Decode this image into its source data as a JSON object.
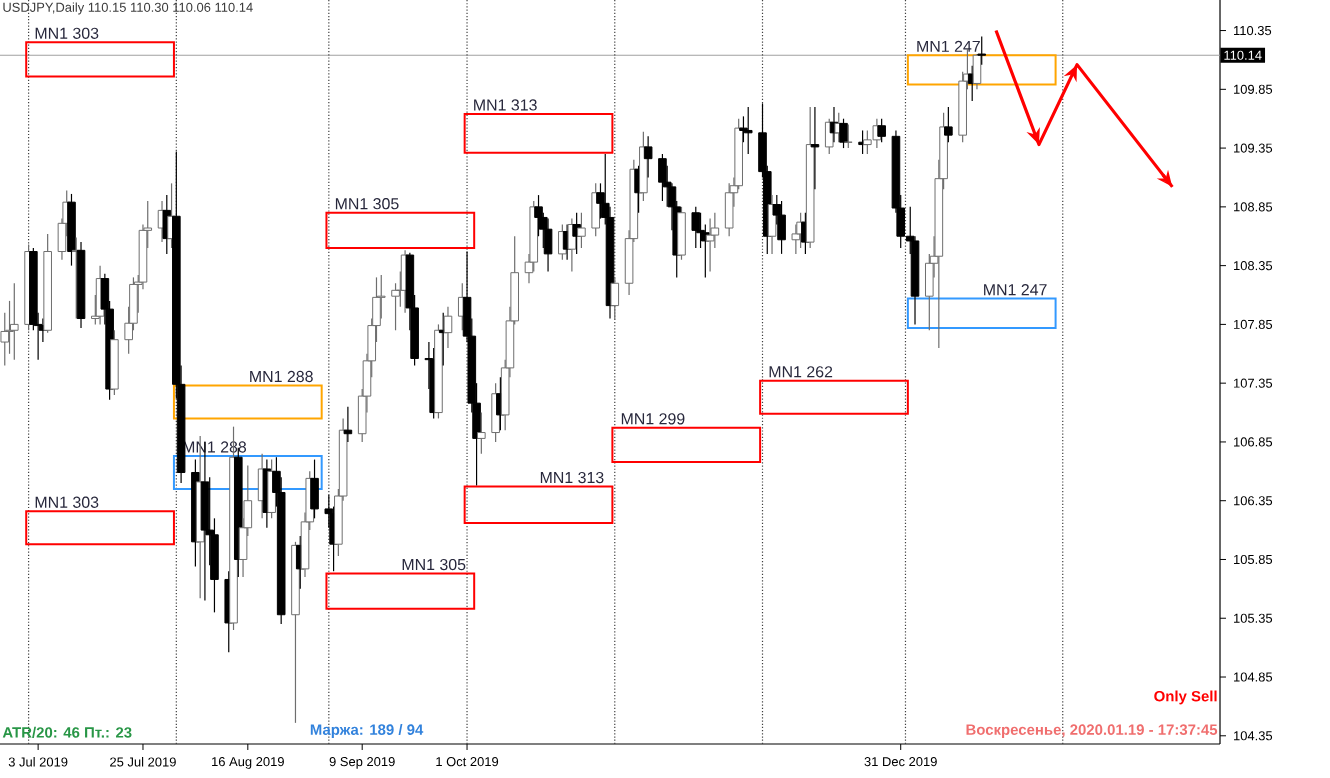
{
  "chart_data": {
    "type": "candlestick",
    "title": "USDJPY,Daily  110.15 110.30 110.06 110.14",
    "x": [
      "2019-06-26",
      "2019-06-27",
      "2019-06-28",
      "2019-07-01",
      "2019-07-02",
      "2019-07-03",
      "2019-07-04",
      "2019-07-05",
      "2019-07-08",
      "2019-07-09",
      "2019-07-10",
      "2019-07-11",
      "2019-07-12",
      "2019-07-15",
      "2019-07-16",
      "2019-07-17",
      "2019-07-18",
      "2019-07-19",
      "2019-07-22",
      "2019-07-23",
      "2019-07-24",
      "2019-07-25",
      "2019-07-26",
      "2019-07-29",
      "2019-07-30",
      "2019-07-31",
      "2019-08-01",
      "2019-08-02",
      "2019-08-05",
      "2019-08-06",
      "2019-08-07",
      "2019-08-08",
      "2019-08-09",
      "2019-08-12",
      "2019-08-13",
      "2019-08-14",
      "2019-08-15",
      "2019-08-16",
      "2019-08-19",
      "2019-08-20",
      "2019-08-21",
      "2019-08-22",
      "2019-08-23",
      "2019-08-26",
      "2019-08-27",
      "2019-08-28",
      "2019-08-29",
      "2019-08-30",
      "2019-09-02",
      "2019-09-03",
      "2019-09-04",
      "2019-09-05",
      "2019-09-06",
      "2019-09-09",
      "2019-09-10",
      "2019-09-11",
      "2019-09-12",
      "2019-09-13",
      "2019-09-16",
      "2019-09-17",
      "2019-09-18",
      "2019-09-19",
      "2019-09-20",
      "2019-09-23",
      "2019-09-24",
      "2019-09-25",
      "2019-09-26",
      "2019-09-27",
      "2019-09-30",
      "2019-10-01",
      "2019-10-02",
      "2019-10-03",
      "2019-10-04",
      "2019-10-07",
      "2019-10-08",
      "2019-10-09",
      "2019-10-10",
      "2019-10-11",
      "2019-10-14",
      "2019-10-15",
      "2019-10-16",
      "2019-10-17",
      "2019-10-18",
      "2019-10-21",
      "2019-10-22",
      "2019-10-23",
      "2019-10-24",
      "2019-10-25",
      "2019-10-28",
      "2019-10-29",
      "2019-10-30",
      "2019-10-31",
      "2019-11-01",
      "2019-11-04",
      "2019-11-05",
      "2019-11-06",
      "2019-11-07",
      "2019-11-08",
      "2019-11-11",
      "2019-11-12",
      "2019-11-13",
      "2019-11-14",
      "2019-11-15",
      "2019-11-18",
      "2019-11-19",
      "2019-11-20",
      "2019-11-21",
      "2019-11-22",
      "2019-11-25",
      "2019-11-26",
      "2019-11-27",
      "2019-11-28",
      "2019-11-29",
      "2019-12-02",
      "2019-12-03",
      "2019-12-04",
      "2019-12-05",
      "2019-12-06",
      "2019-12-09",
      "2019-12-10",
      "2019-12-11",
      "2019-12-12",
      "2019-12-13",
      "2019-12-16",
      "2019-12-17",
      "2019-12-18",
      "2019-12-19",
      "2019-12-20",
      "2019-12-23",
      "2019-12-24",
      "2019-12-26",
      "2019-12-27",
      "2019-12-30",
      "2019-12-31",
      "2020-01-02",
      "2020-01-03",
      "2020-01-06",
      "2020-01-07",
      "2020-01-08",
      "2020-01-09",
      "2020-01-10",
      "2020-01-13",
      "2020-01-14",
      "2020-01-15",
      "2020-01-16",
      "2020-01-17"
    ],
    "ohlc": [
      [
        107.7,
        107.95,
        107.5,
        107.79
      ],
      [
        107.79,
        108.05,
        107.6,
        107.8
      ],
      [
        107.8,
        108.2,
        107.55,
        107.85
      ],
      [
        107.85,
        108.53,
        107.8,
        108.47
      ],
      [
        108.47,
        108.5,
        107.8,
        107.85
      ],
      [
        107.85,
        107.95,
        107.55,
        107.84
      ],
      [
        107.84,
        107.9,
        107.7,
        107.8
      ],
      [
        107.8,
        108.62,
        107.78,
        108.47
      ],
      [
        108.47,
        108.75,
        108.4,
        108.71
      ],
      [
        108.71,
        108.99,
        108.6,
        108.89
      ],
      [
        108.89,
        108.96,
        108.35,
        108.47
      ],
      [
        108.47,
        108.59,
        107.9,
        108.48
      ],
      [
        108.48,
        108.55,
        107.82,
        107.9
      ],
      [
        107.9,
        108.1,
        107.85,
        107.92
      ],
      [
        107.92,
        108.35,
        107.85,
        108.24
      ],
      [
        108.24,
        108.28,
        107.85,
        107.98
      ],
      [
        107.98,
        108.05,
        107.21,
        107.3
      ],
      [
        107.3,
        107.8,
        107.25,
        107.72
      ],
      [
        107.72,
        108.0,
        107.6,
        107.86
      ],
      [
        107.86,
        108.25,
        107.8,
        108.19
      ],
      [
        108.19,
        108.27,
        107.95,
        108.21
      ],
      [
        108.21,
        108.7,
        108.15,
        108.65
      ],
      [
        108.65,
        108.9,
        108.5,
        108.67
      ],
      [
        108.67,
        108.9,
        108.55,
        108.82
      ],
      [
        108.82,
        108.95,
        108.45,
        108.58
      ],
      [
        108.58,
        109.05,
        108.5,
        108.77
      ],
      [
        108.77,
        109.32,
        107.22,
        107.34
      ],
      [
        107.34,
        107.5,
        106.5,
        106.59
      ],
      [
        106.59,
        106.7,
        105.79,
        106.0
      ],
      [
        106.0,
        106.9,
        105.52,
        106.51
      ],
      [
        106.51,
        106.85,
        105.5,
        106.1
      ],
      [
        106.1,
        106.55,
        105.8,
        106.06
      ],
      [
        106.06,
        106.2,
        105.4,
        105.68
      ],
      [
        105.68,
        105.75,
        105.06,
        105.31
      ],
      [
        105.31,
        106.98,
        105.25,
        106.72
      ],
      [
        106.72,
        106.8,
        105.7,
        105.85
      ],
      [
        105.85,
        106.2,
        105.7,
        106.12
      ],
      [
        106.12,
        106.65,
        106.05,
        106.35
      ],
      [
        106.35,
        106.75,
        106.2,
        106.62
      ],
      [
        106.62,
        106.7,
        106.12,
        106.25
      ],
      [
        106.25,
        106.7,
        106.2,
        106.6
      ],
      [
        106.6,
        106.72,
        106.3,
        106.42
      ],
      [
        106.42,
        106.55,
        105.3,
        105.38
      ],
      [
        105.38,
        106.0,
        104.46,
        105.97
      ],
      [
        105.97,
        106.05,
        105.6,
        105.77
      ],
      [
        105.77,
        106.25,
        105.7,
        106.17
      ],
      [
        106.17,
        106.6,
        106.1,
        106.54
      ],
      [
        106.54,
        106.7,
        106.2,
        106.28
      ],
      [
        106.28,
        106.4,
        106.12,
        106.24
      ],
      [
        106.24,
        106.3,
        105.75,
        105.98
      ],
      [
        105.98,
        106.45,
        105.88,
        106.39
      ],
      [
        106.39,
        107.05,
        106.35,
        106.95
      ],
      [
        106.95,
        107.15,
        106.85,
        106.92
      ],
      [
        106.92,
        107.3,
        106.85,
        107.24
      ],
      [
        107.24,
        107.6,
        107.1,
        107.54
      ],
      [
        107.54,
        107.9,
        107.4,
        107.84
      ],
      [
        107.84,
        108.25,
        107.7,
        108.08
      ],
      [
        108.08,
        108.27,
        107.9,
        108.09
      ],
      [
        108.09,
        108.2,
        107.8,
        108.14
      ],
      [
        108.14,
        108.3,
        108.0,
        108.14
      ],
      [
        108.14,
        108.48,
        107.95,
        108.44
      ],
      [
        108.44,
        108.46,
        107.8,
        107.99
      ],
      [
        107.99,
        108.1,
        107.5,
        107.56
      ],
      [
        107.56,
        107.7,
        107.3,
        107.55
      ],
      [
        107.55,
        107.65,
        107.05,
        107.1
      ],
      [
        107.1,
        107.85,
        107.05,
        107.8
      ],
      [
        107.8,
        107.95,
        107.5,
        107.78
      ],
      [
        107.78,
        108.0,
        107.65,
        107.92
      ],
      [
        107.92,
        108.2,
        107.8,
        108.08
      ],
      [
        108.08,
        108.47,
        107.7,
        107.75
      ],
      [
        107.75,
        107.9,
        107.1,
        107.18
      ],
      [
        107.18,
        107.35,
        106.48,
        106.88
      ],
      [
        106.88,
        107.1,
        106.75,
        106.93
      ],
      [
        106.93,
        107.35,
        106.85,
        107.26
      ],
      [
        107.26,
        107.4,
        106.95,
        107.08
      ],
      [
        107.08,
        107.55,
        106.95,
        107.48
      ],
      [
        107.48,
        108.0,
        107.4,
        107.88
      ],
      [
        107.88,
        108.6,
        107.85,
        108.29
      ],
      [
        108.29,
        108.45,
        108.2,
        108.38
      ],
      [
        108.38,
        108.9,
        108.3,
        108.85
      ],
      [
        108.85,
        108.95,
        108.6,
        108.76
      ],
      [
        108.76,
        108.8,
        108.5,
        108.66
      ],
      [
        108.66,
        108.75,
        108.3,
        108.45
      ],
      [
        108.45,
        108.7,
        108.4,
        108.64
      ],
      [
        108.64,
        108.7,
        108.4,
        108.49
      ],
      [
        108.49,
        108.75,
        108.3,
        108.7
      ],
      [
        108.7,
        108.8,
        108.45,
        108.6
      ],
      [
        108.6,
        108.8,
        108.5,
        108.67
      ],
      [
        108.67,
        109.05,
        108.6,
        108.97
      ],
      [
        108.97,
        109.05,
        108.75,
        108.88
      ],
      [
        108.88,
        109.3,
        108.7,
        108.76
      ],
      [
        108.76,
        108.85,
        107.9,
        108.01
      ],
      [
        108.01,
        108.25,
        107.89,
        108.2
      ],
      [
        108.2,
        108.65,
        108.1,
        108.58
      ],
      [
        108.58,
        109.25,
        108.55,
        109.17
      ],
      [
        109.17,
        109.2,
        108.8,
        108.97
      ],
      [
        108.97,
        109.49,
        108.9,
        109.36
      ],
      [
        109.36,
        109.45,
        109.1,
        109.26
      ],
      [
        109.26,
        109.3,
        108.9,
        109.06
      ],
      [
        109.06,
        109.2,
        108.85,
        109.02
      ],
      [
        109.02,
        109.05,
        108.65,
        108.85
      ],
      [
        108.85,
        108.9,
        108.25,
        108.44
      ],
      [
        108.44,
        108.85,
        108.4,
        108.8
      ],
      [
        108.8,
        108.85,
        108.5,
        108.65
      ],
      [
        108.65,
        108.8,
        108.5,
        108.63
      ],
      [
        108.63,
        108.7,
        108.25,
        108.56
      ],
      [
        108.56,
        108.75,
        108.3,
        108.61
      ],
      [
        108.61,
        108.8,
        108.5,
        108.67
      ],
      [
        108.67,
        109.05,
        108.6,
        108.97
      ],
      [
        108.97,
        109.1,
        108.85,
        109.03
      ],
      [
        109.03,
        109.6,
        109.0,
        109.52
      ],
      [
        109.52,
        109.62,
        109.4,
        109.5
      ],
      [
        109.5,
        109.7,
        109.3,
        109.48
      ],
      [
        109.48,
        109.73,
        109.1,
        109.15
      ],
      [
        109.15,
        109.2,
        108.45,
        108.6
      ],
      [
        108.6,
        108.95,
        108.45,
        108.87
      ],
      [
        108.87,
        108.95,
        108.7,
        108.78
      ],
      [
        108.78,
        108.9,
        108.45,
        108.57
      ],
      [
        108.57,
        108.7,
        108.45,
        108.62
      ],
      [
        108.62,
        108.8,
        108.5,
        108.72
      ],
      [
        108.72,
        108.8,
        108.45,
        108.55
      ],
      [
        108.55,
        109.7,
        108.5,
        109.38
      ],
      [
        109.38,
        109.7,
        109.0,
        109.36
      ],
      [
        109.36,
        109.6,
        109.3,
        109.57
      ],
      [
        109.57,
        109.7,
        109.4,
        109.48
      ],
      [
        109.48,
        109.65,
        109.4,
        109.56
      ],
      [
        109.56,
        109.6,
        109.35,
        109.4
      ],
      [
        109.4,
        109.55,
        109.35,
        109.4
      ],
      [
        109.4,
        109.5,
        109.3,
        109.38
      ],
      [
        109.38,
        109.5,
        109.3,
        109.42
      ],
      [
        109.42,
        109.6,
        109.35,
        109.54
      ],
      [
        109.54,
        109.6,
        109.4,
        109.45
      ],
      [
        109.45,
        109.5,
        108.8,
        108.84
      ],
      [
        108.84,
        108.95,
        108.5,
        108.6
      ],
      [
        108.6,
        108.85,
        108.45,
        108.56
      ],
      [
        108.56,
        108.6,
        107.85,
        108.09
      ],
      [
        108.09,
        108.45,
        107.8,
        108.37
      ],
      [
        108.37,
        108.6,
        108.25,
        108.43
      ],
      [
        108.43,
        109.25,
        107.65,
        109.09
      ],
      [
        109.09,
        109.65,
        109.0,
        109.53
      ],
      [
        109.53,
        109.7,
        109.4,
        109.46
      ],
      [
        109.46,
        110.0,
        109.4,
        109.92
      ],
      [
        109.92,
        110.2,
        109.85,
        109.98
      ],
      [
        109.98,
        110.05,
        109.75,
        109.9
      ],
      [
        109.9,
        110.15,
        109.85,
        110.14
      ],
      [
        110.15,
        110.3,
        110.06,
        110.14
      ]
    ],
    "series": [
      {
        "type": "bar",
        "color": "#ff0000",
        "x": [
          "2019-07-16",
          "2019-09-17",
          "2019-10-16"
        ],
        "base": [
          109.96,
          108.5,
          109.31
        ],
        "values": [
          0.29,
          0.3,
          0.33
        ],
        "value_labels": [
          "MN1 303",
          "MN1 305",
          "MN1 313"
        ]
      },
      {
        "type": "bar",
        "color": "#ff0000",
        "x": [
          "2019-07-16",
          "2019-09-17",
          "2019-10-16",
          "2019-11-16",
          "2019-12-17"
        ],
        "base": [
          105.98,
          105.43,
          106.16,
          106.68,
          107.09
        ],
        "values": [
          0.28,
          0.3,
          0.31,
          0.29,
          0.28
        ],
        "value_labels": [
          "MN1 303",
          "MN1 305",
          "MN1 313",
          "MN1 299",
          "MN1 262"
        ]
      },
      {
        "type": "bar",
        "color": "#ffa500",
        "x": [
          "2019-08-16",
          "2020-01-17"
        ],
        "base": [
          107.05,
          109.89
        ],
        "values": [
          0.28,
          0.25
        ],
        "value_labels": [
          "MN1 288",
          "MN1 247"
        ]
      },
      {
        "type": "bar",
        "color": "#3399ff",
        "x": [
          "2019-08-16",
          "2020-01-17"
        ],
        "base": [
          106.45,
          107.82
        ],
        "values": [
          0.28,
          0.25
        ],
        "value_labels": [
          "MN1 288",
          "MN1 247"
        ]
      },
      {
        "type": "line",
        "color": "#ff0000",
        "x": [
          "2020-01-20",
          "2020-01-29",
          "2020-02-06",
          "2020-02-26"
        ],
        "values": [
          110.35,
          109.38,
          110.06,
          109.02
        ]
      }
    ],
    "xlim": [
      "2019-06-25",
      "2020-03-07"
    ],
    "xticks": [
      {
        "value": "2019-07-03",
        "label": "3 Jul 2019"
      },
      {
        "value": "2019-07-25",
        "label": "25 Jul 2019"
      },
      {
        "value": "2019-08-16",
        "label": "16 Aug 2019"
      },
      {
        "value": "2019-09-09",
        "label": "9 Sep 2019"
      },
      {
        "value": "2019-10-01",
        "label": "1 Oct 2019"
      },
      {
        "value": "2019-12-31",
        "label": "31 Dec 2019"
      }
    ],
    "ylim": [
      104.28,
      110.61
    ],
    "yticks": [
      104.35,
      104.85,
      105.35,
      105.85,
      106.35,
      106.85,
      107.35,
      107.85,
      108.35,
      108.85,
      109.35,
      109.85,
      110.35
    ],
    "ref_lines": [
      {
        "axis": "y",
        "value": 110.14,
        "label": "110.14",
        "color": "#a0a0a0",
        "line_style": "solid"
      },
      {
        "axis": "x",
        "value": "2019-07-01",
        "color": "#404040",
        "line_style": "dotted"
      },
      {
        "axis": "x",
        "value": "2019-08-01",
        "color": "#404040",
        "line_style": "dotted"
      },
      {
        "axis": "x",
        "value": "2019-09-02",
        "color": "#404040",
        "line_style": "dotted"
      },
      {
        "axis": "x",
        "value": "2019-10-01",
        "color": "#404040",
        "line_style": "dotted"
      },
      {
        "axis": "x",
        "value": "2019-11-01",
        "color": "#404040",
        "line_style": "dotted"
      },
      {
        "axis": "x",
        "value": "2019-12-02",
        "color": "#404040",
        "line_style": "dotted"
      },
      {
        "axis": "x",
        "value": "2020-01-01",
        "color": "#404040",
        "line_style": "dotted"
      },
      {
        "axis": "x",
        "value": "2020-02-03",
        "color": "#404040",
        "line_style": "dotted"
      }
    ],
    "annotations": [
      "ATR/20: 46  Пт.: 23",
      "Маржа: 189 / 94",
      "Воскресенье, 2020.01.19 - 17:37:45",
      "Only Sell"
    ]
  }
}
